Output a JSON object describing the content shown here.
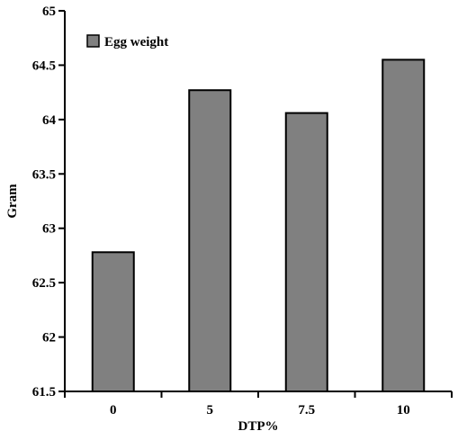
{
  "chart_data": {
    "type": "bar",
    "categories": [
      "0",
      "5",
      "7.5",
      "10"
    ],
    "series": [
      {
        "name": "Egg weight",
        "values": [
          62.78,
          64.27,
          64.06,
          64.55
        ],
        "color": "#808080"
      }
    ],
    "title": "",
    "xlabel": "DTP%",
    "ylabel": "Gram",
    "ylim": [
      61.5,
      65
    ],
    "yticks": [
      "61.5",
      "62",
      "62.5",
      "63",
      "63.5",
      "64",
      "64.5",
      "65"
    ],
    "grid": false,
    "legend_position": "top-left"
  }
}
